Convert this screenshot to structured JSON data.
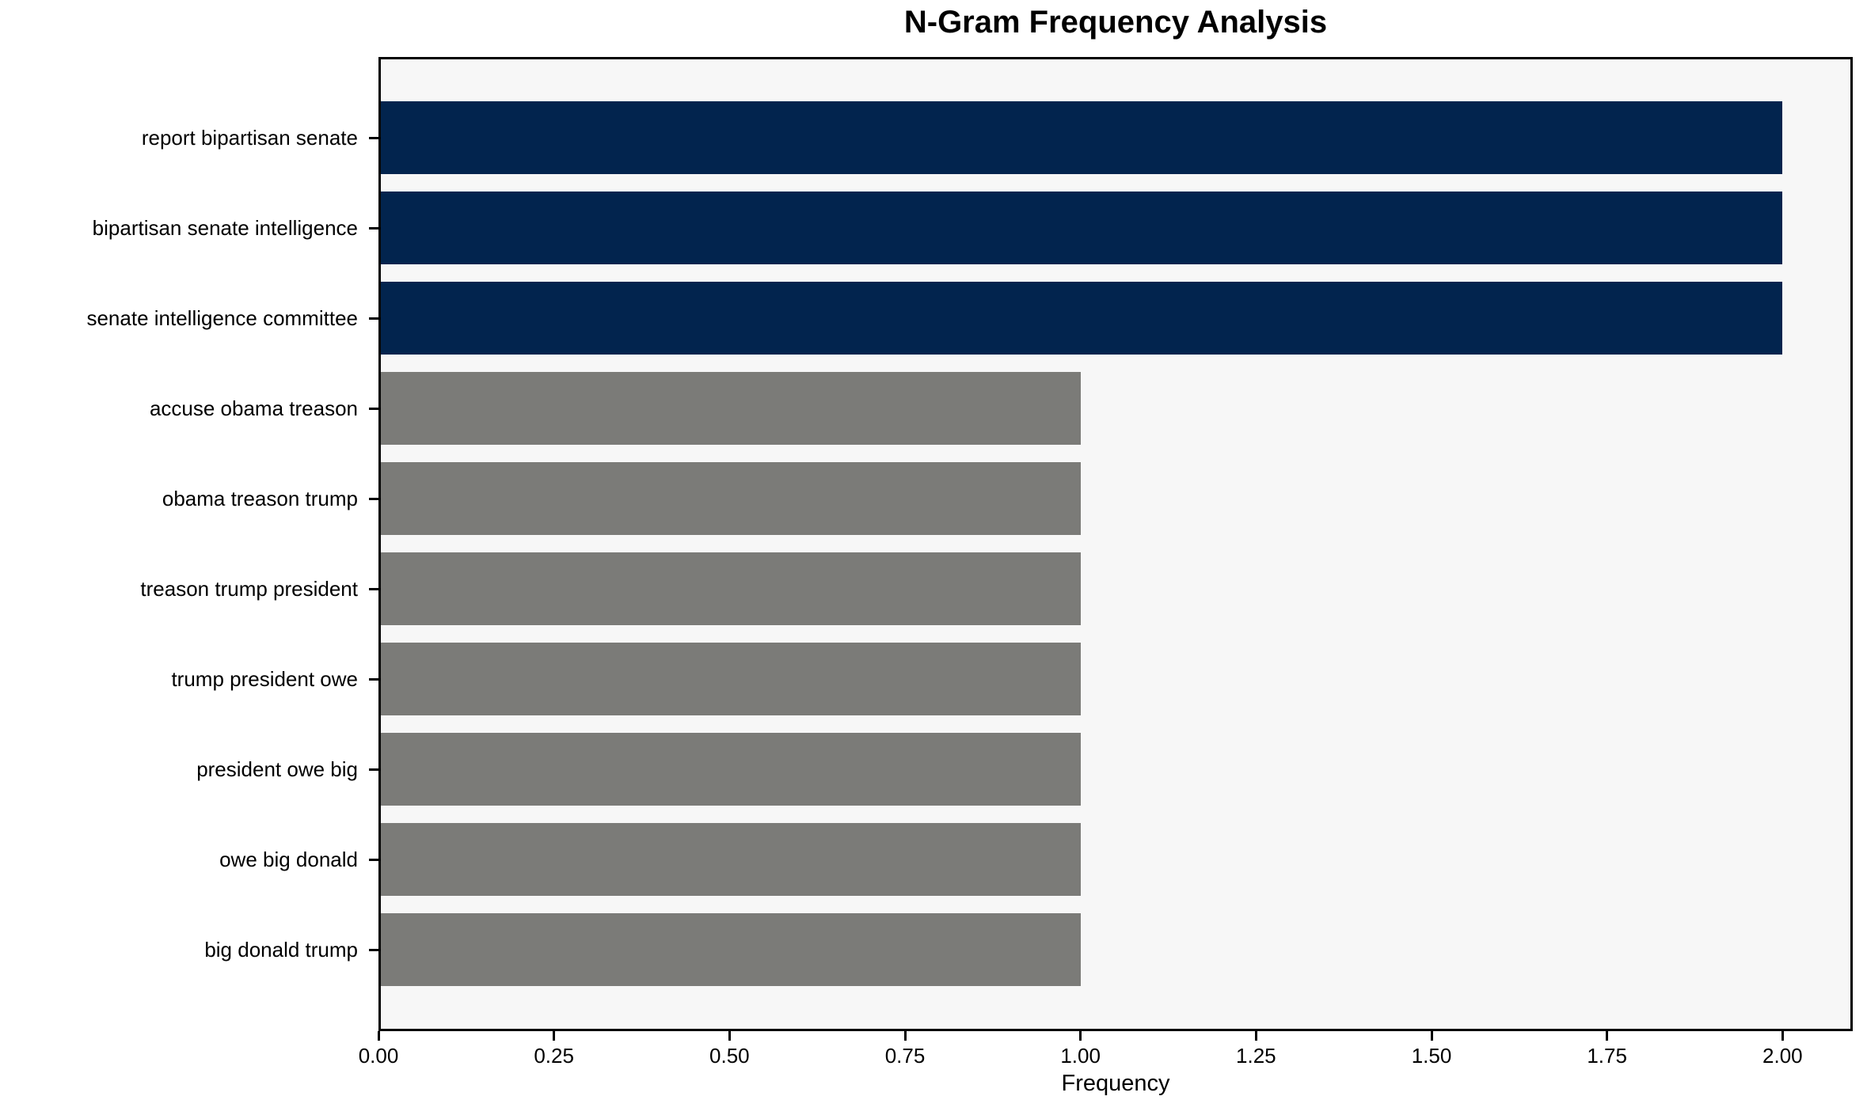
{
  "chart_data": {
    "type": "bar",
    "orientation": "horizontal",
    "title": "N-Gram Frequency Analysis",
    "xlabel": "Frequency",
    "ylabel": "",
    "categories": [
      "report bipartisan senate",
      "bipartisan senate intelligence",
      "senate intelligence committee",
      "accuse obama treason",
      "obama treason trump",
      "treason trump president",
      "trump president owe",
      "president owe big",
      "owe big donald",
      "big donald trump"
    ],
    "values": [
      2,
      2,
      2,
      1,
      1,
      1,
      1,
      1,
      1,
      1
    ],
    "bar_colors": [
      "#02244e",
      "#02244e",
      "#02244e",
      "#7b7b78",
      "#7b7b78",
      "#7b7b78",
      "#7b7b78",
      "#7b7b78",
      "#7b7b78",
      "#7b7b78"
    ],
    "highlight_color": "#02244e",
    "default_color": "#7b7b78",
    "xtick_labels": [
      "0.00",
      "0.25",
      "0.50",
      "0.75",
      "1.00",
      "1.25",
      "1.50",
      "1.75",
      "2.00"
    ],
    "xtick_values": [
      0,
      0.25,
      0.5,
      0.75,
      1.0,
      1.25,
      1.5,
      1.75,
      2.0
    ],
    "xlim": [
      0,
      2.1
    ],
    "grid": false,
    "legend": null,
    "plot_background": "#f7f7f7",
    "frame_color": "#000000"
  }
}
